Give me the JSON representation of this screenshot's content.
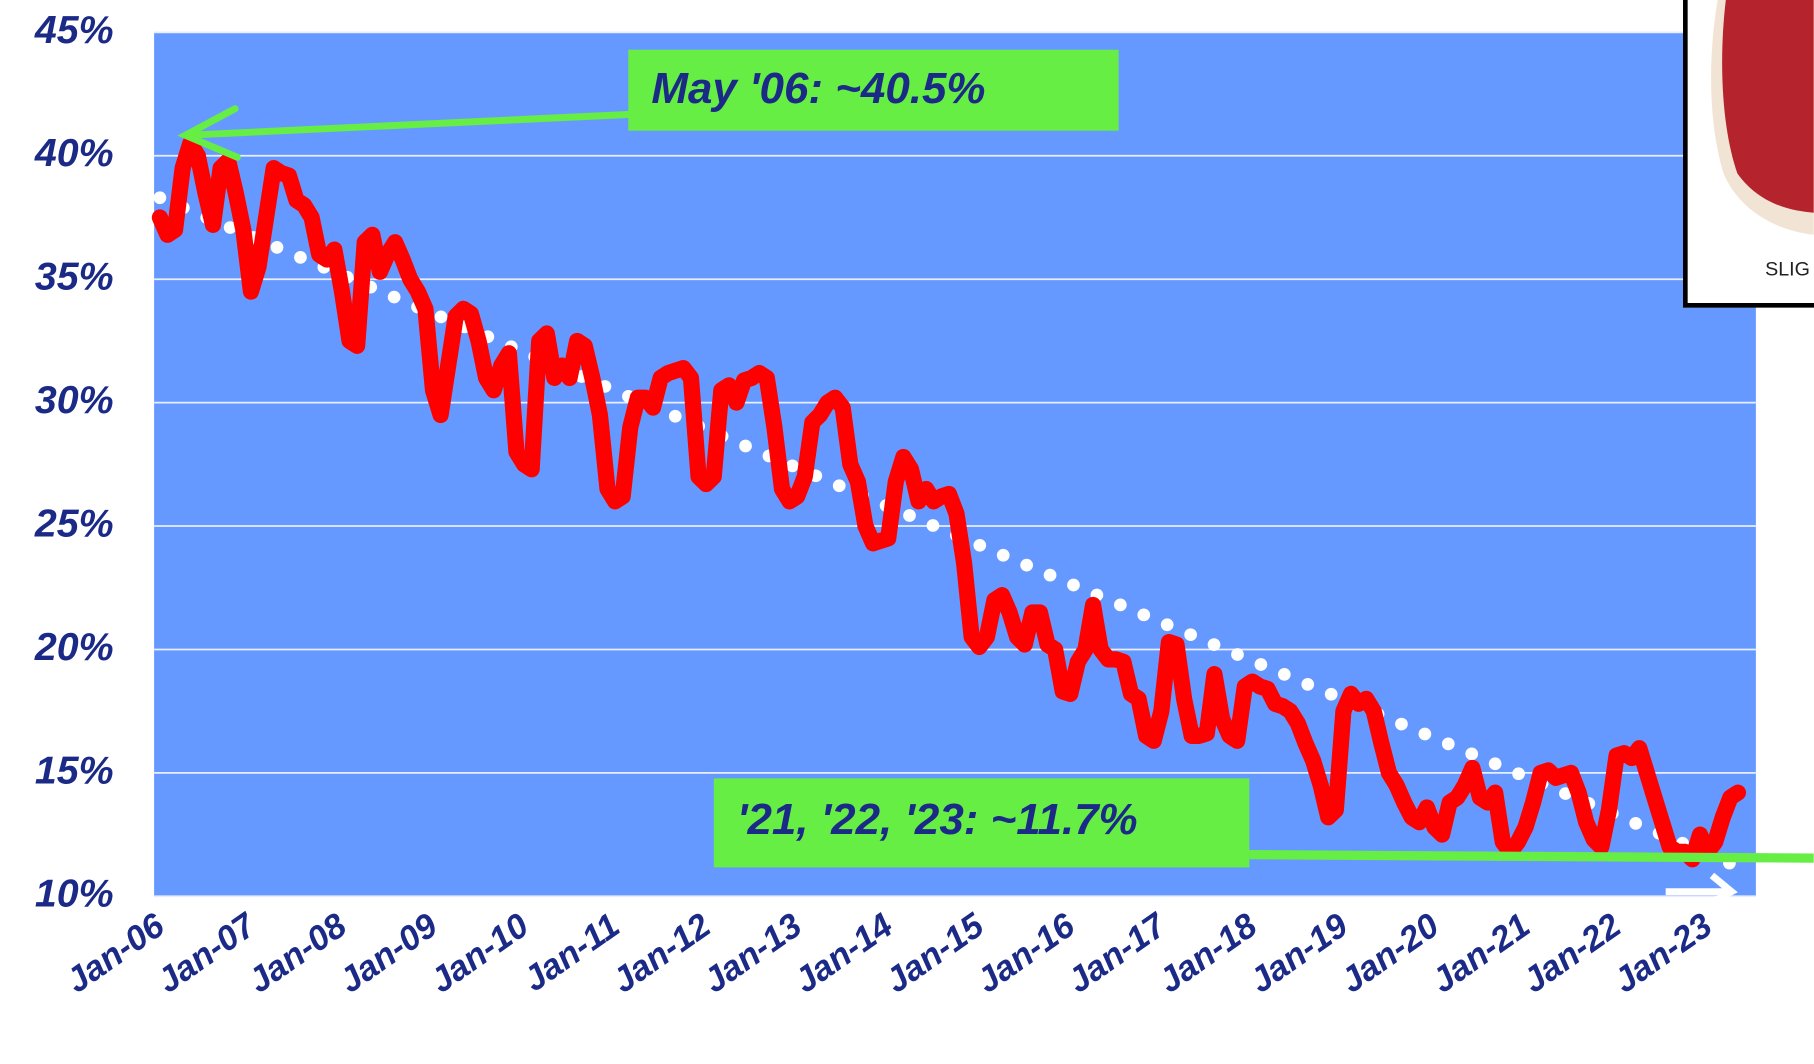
{
  "chart_data": {
    "type": "line",
    "categories": [
      "Jan-06",
      null,
      null,
      null,
      null,
      null,
      null,
      null,
      null,
      null,
      null,
      null,
      "Jan-07",
      null,
      null,
      null,
      null,
      null,
      null,
      null,
      null,
      null,
      null,
      null,
      "Jan-08",
      null,
      null,
      null,
      null,
      null,
      null,
      null,
      null,
      null,
      null,
      null,
      "Jan-09",
      null,
      null,
      null,
      null,
      null,
      null,
      null,
      null,
      null,
      null,
      null,
      "Jan-10",
      null,
      null,
      null,
      null,
      null,
      null,
      null,
      null,
      null,
      null,
      null,
      "Jan-11",
      null,
      null,
      null,
      null,
      null,
      null,
      null,
      null,
      null,
      null,
      null,
      "Jan-12",
      null,
      null,
      null,
      null,
      null,
      null,
      null,
      null,
      null,
      null,
      null,
      "Jan-13",
      null,
      null,
      null,
      null,
      null,
      null,
      null,
      null,
      null,
      null,
      null,
      "Jan-14",
      null,
      null,
      null,
      null,
      null,
      null,
      null,
      null,
      null,
      null,
      null,
      "Jan-15",
      null,
      null,
      null,
      null,
      null,
      null,
      null,
      null,
      null,
      null,
      null,
      "Jan-16",
      null,
      null,
      null,
      null,
      null,
      null,
      null,
      null,
      null,
      null,
      null,
      "Jan-17",
      null,
      null,
      null,
      null,
      null,
      null,
      null,
      null,
      null,
      null,
      null,
      "Jan-18",
      null,
      null,
      null,
      null,
      null,
      null,
      null,
      null,
      null,
      null,
      null,
      "Jan-19",
      null,
      null,
      null,
      null,
      null,
      null,
      null,
      null,
      null,
      null,
      null,
      "Jan-20",
      null,
      null,
      null,
      null,
      null,
      null,
      null,
      null,
      null,
      null,
      null,
      "Jan-21",
      null,
      null,
      null,
      null,
      null,
      null,
      null,
      null,
      null,
      null,
      null,
      "Jan-22",
      null,
      null,
      null,
      null,
      null,
      null,
      null,
      null,
      null,
      null,
      null,
      "Jan-23",
      null,
      null,
      null,
      null
    ],
    "series": [
      {
        "color": "#ff0000",
        "values": [
          37.5,
          36.8,
          37,
          39.5,
          40.5,
          40,
          38.5,
          37.2,
          39.5,
          39.8,
          38.5,
          37,
          34.5,
          35.5,
          37.5,
          39.5,
          39.3,
          39.2,
          38.2,
          38,
          37.5,
          36,
          35.8,
          36.2,
          34.5,
          32.5,
          32.3,
          36.5,
          36.8,
          35.3,
          36,
          36.5,
          35.8,
          35,
          34.5,
          33.8,
          30.5,
          29.5,
          31.5,
          33.5,
          33.8,
          33.6,
          32.5,
          31,
          30.5,
          31.5,
          32,
          28,
          27.5,
          27.3,
          32.5,
          32.8,
          31,
          31.5,
          31,
          32.5,
          32.3,
          31,
          29.5,
          26.5,
          26,
          26.2,
          29,
          30.2,
          30.2,
          29.8,
          31,
          31.2,
          31.3,
          31.4,
          31,
          27,
          26.7,
          27,
          30.5,
          30.7,
          30,
          30.9,
          31,
          31.2,
          31,
          29,
          26.5,
          26,
          26.2,
          27,
          29.2,
          29.5,
          30,
          30.2,
          29.8,
          27.5,
          26.8,
          25,
          24.3,
          24.4,
          24.5,
          26.8,
          27.8,
          27.3,
          26,
          26.5,
          26,
          26.2,
          26.3,
          25.5,
          23.5,
          20.5,
          20.1,
          20.5,
          22,
          22.2,
          21.5,
          20.5,
          20.2,
          21.5,
          21.5,
          20.2,
          20,
          18.3,
          18.2,
          19.5,
          20,
          21.8,
          20,
          19.6,
          19.6,
          19.5,
          18.2,
          18,
          16.5,
          16.3,
          17.5,
          20.3,
          20.2,
          18,
          16.5,
          16.5,
          16.6,
          19,
          17.2,
          16.5,
          16.3,
          18.5,
          18.7,
          18.5,
          18.4,
          17.8,
          17.7,
          17.5,
          17,
          16.2,
          15.5,
          14.5,
          13.2,
          13.5,
          17.5,
          18.2,
          17.8,
          18,
          17.5,
          16.2,
          15,
          14.5,
          13.8,
          13.2,
          13,
          13.6,
          12.8,
          12.5,
          13.8,
          14,
          14.5,
          15.2,
          14,
          13.8,
          14.2,
          12.2,
          11.8,
          12.2,
          12.8,
          13.8,
          15,
          15.1,
          14.8,
          14.9,
          15,
          14.2,
          13,
          12.3,
          12,
          13.5,
          15.7,
          15.8,
          15.6,
          16,
          15,
          14,
          13,
          12,
          11.8,
          11.8,
          11.5,
          12.5,
          11.8,
          12.2,
          13.2,
          14,
          14.2
        ]
      }
    ],
    "trend": {
      "start": 38.3,
      "end": 11.2,
      "color": "#ffffff"
    },
    "ylim": [
      10,
      45
    ],
    "yticks": [
      {
        "value": 10,
        "label": "10%"
      },
      {
        "value": 15,
        "label": "15%"
      },
      {
        "value": 20,
        "label": "20%"
      },
      {
        "value": 25,
        "label": "25%"
      },
      {
        "value": 30,
        "label": "30%"
      },
      {
        "value": 35,
        "label": "35%"
      },
      {
        "value": 40,
        "label": "40%"
      },
      {
        "value": 45,
        "label": "45%"
      }
    ],
    "grid": true,
    "background": "#6699ff",
    "annotations": [
      "May '06:  ~40.5%",
      "'21, '22, '23: ~11.7%"
    ],
    "image_caption": "SLIG"
  }
}
